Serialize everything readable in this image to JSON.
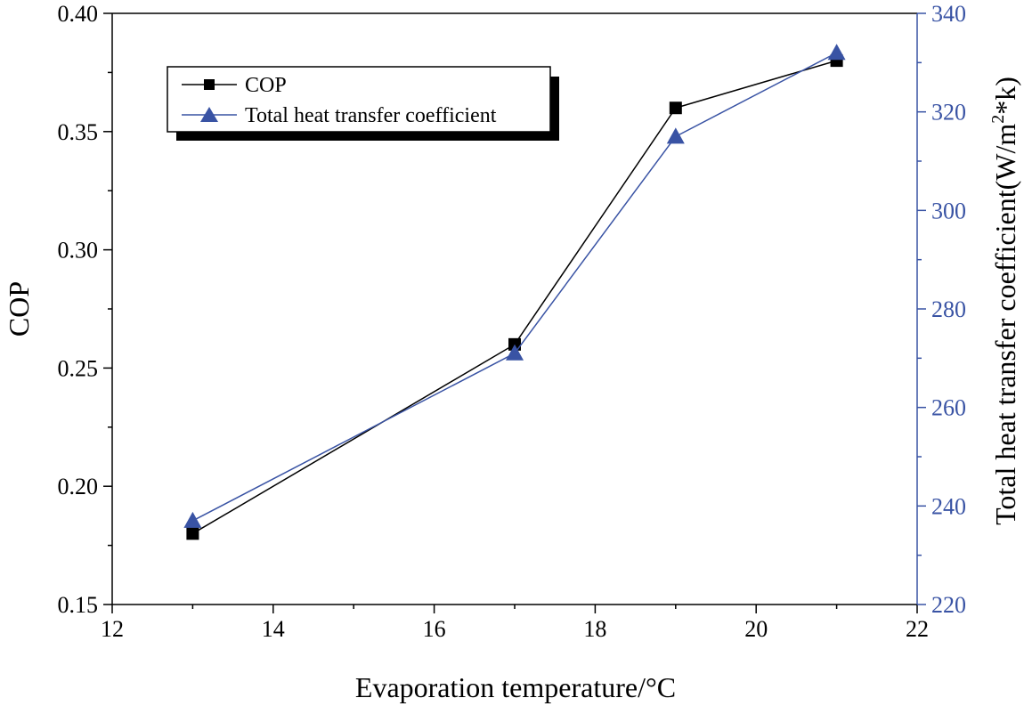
{
  "chart_data": {
    "type": "line",
    "x": [
      13,
      17,
      19,
      21
    ],
    "xlabel": "Evaporation temperature/°C",
    "xlim": [
      12,
      22
    ],
    "xticks": [
      12,
      14,
      16,
      18,
      20,
      22
    ],
    "ylabel_left": "COP",
    "ylim_left": [
      0.15,
      0.4
    ],
    "yticks_left": [
      "0.15",
      "0.20",
      "0.25",
      "0.30",
      "0.35",
      "0.40"
    ],
    "ylabel_right": "Total heat transfer coefficient(W/m²*k)",
    "ylabel_right_parts": [
      "Total heat transfer coefficient(W/m",
      "2",
      "*k)"
    ],
    "ylim_right": [
      220,
      340
    ],
    "yticks_right": [
      "220",
      "240",
      "260",
      "280",
      "300",
      "320",
      "340"
    ],
    "series": [
      {
        "name": "COP",
        "axis": "left",
        "marker": "square",
        "color": "#000000",
        "values": [
          0.18,
          0.26,
          0.36,
          0.38
        ]
      },
      {
        "name": "Total heat transfer coefficient",
        "axis": "right",
        "marker": "triangle",
        "color": "#3953a4",
        "values": [
          237,
          271,
          315,
          332
        ]
      }
    ],
    "legend": {
      "position": "top-left",
      "entries": [
        "COP",
        "Total heat transfer coefficient"
      ]
    },
    "grid": false
  },
  "colors": {
    "right_axis": "#3953a4",
    "left_axis": "#000000"
  }
}
